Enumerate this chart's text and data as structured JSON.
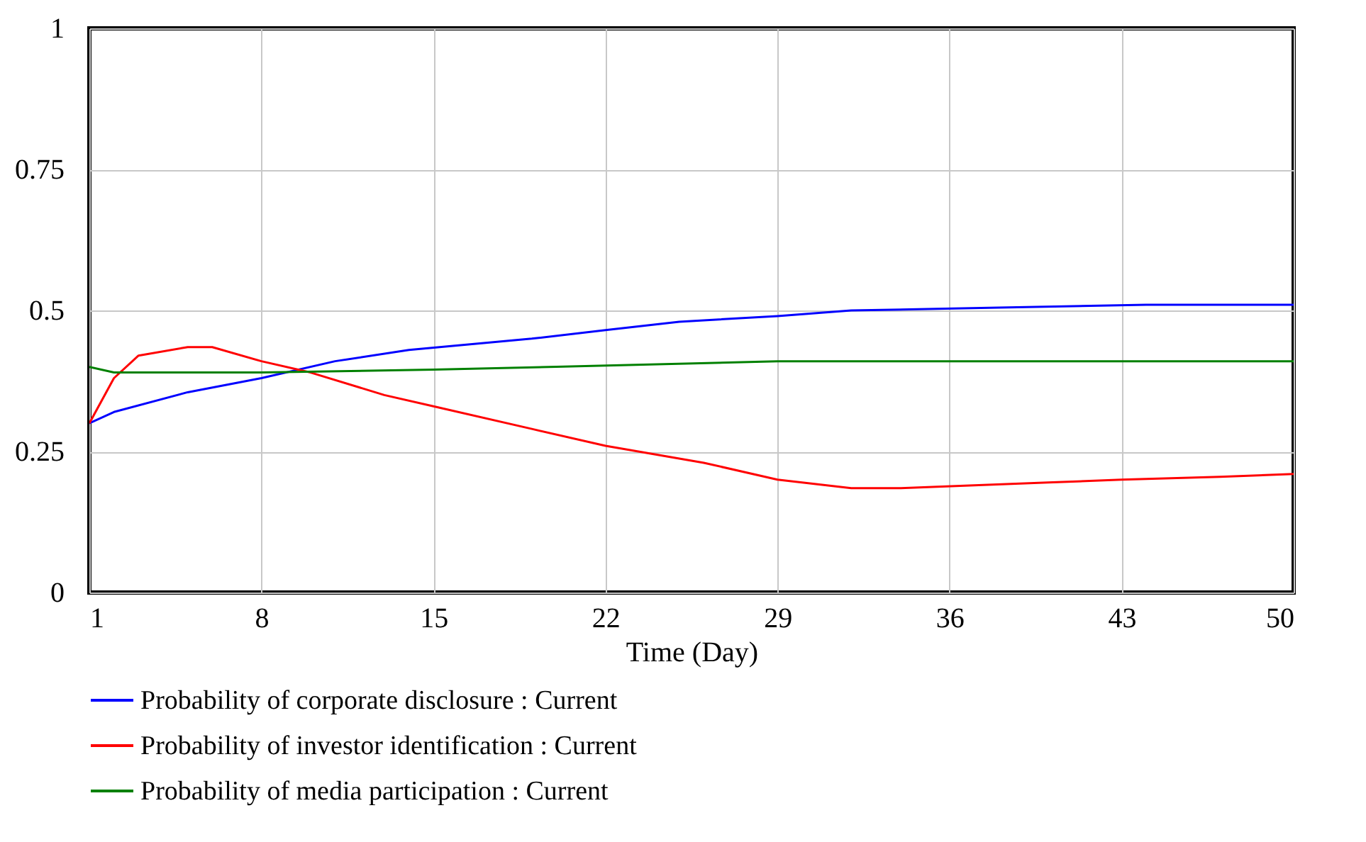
{
  "chart_data": {
    "type": "line",
    "xlabel": "Time (Day)",
    "xlim": [
      1,
      50
    ],
    "xticks": [
      1,
      8,
      15,
      22,
      29,
      36,
      43,
      50
    ],
    "ylim": [
      0,
      1
    ],
    "yticks": [
      0,
      0.25,
      0.5,
      0.75,
      1
    ],
    "grid": true,
    "legend": "bottom",
    "series": [
      {
        "name": "Probability of corporate disclosure : Current",
        "color": "#0000ff",
        "x": [
          1,
          2,
          5,
          8,
          11,
          14,
          19,
          22,
          25,
          29,
          32,
          38,
          44,
          50
        ],
        "values": [
          0.3,
          0.32,
          0.355,
          0.38,
          0.41,
          0.43,
          0.45,
          0.465,
          0.48,
          0.49,
          0.5,
          0.505,
          0.51,
          0.51
        ]
      },
      {
        "name": "Probability of investor identification : Current",
        "color": "#ff0000",
        "x": [
          1,
          2,
          3,
          5,
          6,
          8,
          10,
          13,
          15,
          19,
          22,
          26,
          29,
          32,
          34,
          37,
          40,
          43,
          47,
          50
        ],
        "values": [
          0.3,
          0.38,
          0.42,
          0.435,
          0.435,
          0.41,
          0.39,
          0.35,
          0.33,
          0.29,
          0.26,
          0.23,
          0.2,
          0.185,
          0.185,
          0.19,
          0.195,
          0.2,
          0.205,
          0.21
        ]
      },
      {
        "name": "Probability of media participation : Current",
        "color": "#008000",
        "x": [
          1,
          2,
          8,
          15,
          20,
          29,
          50
        ],
        "values": [
          0.4,
          0.39,
          0.39,
          0.395,
          0.4,
          0.41,
          0.41
        ]
      }
    ]
  }
}
